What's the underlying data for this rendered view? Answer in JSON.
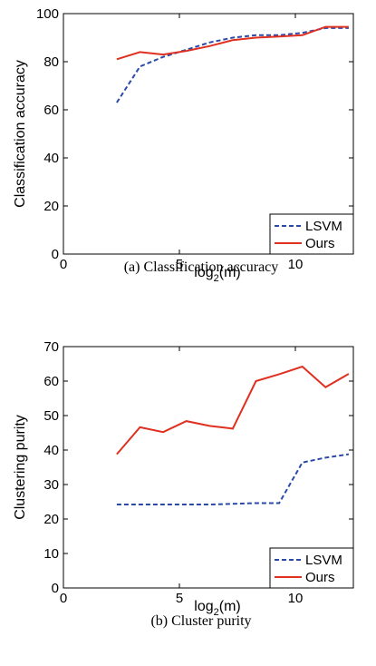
{
  "chart_data": [
    {
      "type": "line",
      "caption": "(a)  Classification accuracy",
      "xlabel_base": "log",
      "xlabel_sub": "2",
      "xlabel_rest": "(m)",
      "ylabel": "Classification accuracy",
      "xlim": [
        0,
        12.5
      ],
      "ylim": [
        0,
        100
      ],
      "xticks": [
        0,
        5,
        10
      ],
      "yticks": [
        0,
        20,
        40,
        60,
        80,
        100
      ],
      "grid": false,
      "legend_position": "bottom-right",
      "series": [
        {
          "name": "LSVM",
          "color": "#2b4aa8",
          "dashed": true,
          "x": [
            2.3,
            3.3,
            4.3,
            5.3,
            6.3,
            7.3,
            8.3,
            9.3,
            10.3,
            11.3,
            12.3
          ],
          "y": [
            63,
            78,
            82,
            85,
            88,
            90,
            91,
            91,
            92,
            94,
            94
          ]
        },
        {
          "name": "Ours",
          "color": "#e03020",
          "dashed": false,
          "x": [
            2.3,
            3.3,
            4.3,
            5.3,
            6.3,
            7.3,
            8.3,
            9.3,
            10.3,
            11.3,
            12.3
          ],
          "y": [
            81,
            84,
            83,
            84.5,
            86.5,
            89,
            90,
            90.5,
            91,
            94.5,
            94.5
          ]
        }
      ]
    },
    {
      "type": "line",
      "caption": "(b)  Cluster purity",
      "xlabel_base": "log",
      "xlabel_sub": "2",
      "xlabel_rest": "(m)",
      "ylabel": "Clustering purity",
      "xlim": [
        0,
        12.5
      ],
      "ylim": [
        0,
        70
      ],
      "xticks": [
        0,
        5,
        10
      ],
      "yticks": [
        0,
        10,
        20,
        30,
        40,
        50,
        60,
        70
      ],
      "grid": false,
      "legend_position": "bottom-right",
      "series": [
        {
          "name": "LSVM",
          "color": "#2b4aa8",
          "dashed": true,
          "x": [
            2.3,
            3.3,
            4.3,
            5.3,
            6.3,
            7.3,
            8.3,
            9.3,
            10.3,
            11.3,
            12.3
          ],
          "y": [
            24.2,
            24.2,
            24.2,
            24.2,
            24.2,
            24.4,
            24.6,
            24.6,
            36.4,
            37.8,
            38.8
          ]
        },
        {
          "name": "Ours",
          "color": "#e03020",
          "dashed": false,
          "x": [
            2.3,
            3.3,
            4.3,
            5.3,
            6.3,
            7.3,
            8.3,
            9.3,
            10.3,
            11.3,
            12.3
          ],
          "y": [
            38.8,
            46.6,
            45.2,
            48.4,
            47,
            46.2,
            60,
            62,
            64.2,
            58.2,
            62.1
          ]
        }
      ]
    }
  ]
}
